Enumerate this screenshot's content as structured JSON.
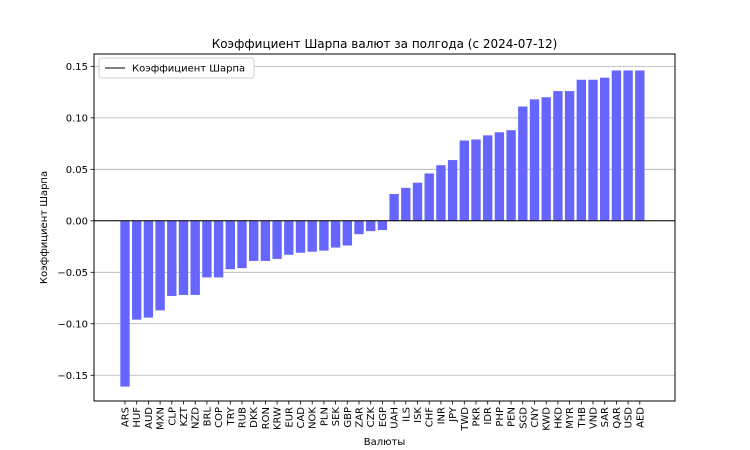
{
  "chart_data": {
    "type": "bar",
    "title": "Коэффициент Шарпа валют за полгода (с 2024-07-12)",
    "xlabel": "Валюты",
    "ylabel": "Коэффициент Шарпа",
    "ylim": [
      -0.175,
      0.162
    ],
    "yticks": [
      -0.15,
      -0.1,
      -0.05,
      0.0,
      0.05,
      0.1,
      0.15
    ],
    "ytick_labels": [
      "−0.15",
      "−0.10",
      "−0.05",
      "0.00",
      "0.05",
      "0.10",
      "0.15"
    ],
    "grid": "horizontal",
    "legend": {
      "placement": "top-left",
      "label": "Коэффициент Шарпа"
    },
    "bar_color": "#6666ff",
    "zero_line_color": "#000000",
    "categories": [
      "ARS",
      "HUF",
      "AUD",
      "MXN",
      "CLP",
      "KZT",
      "NZD",
      "BRL",
      "COP",
      "TRY",
      "RUB",
      "DKK",
      "RON",
      "KRW",
      "EUR",
      "CAD",
      "NOK",
      "PLN",
      "SEK",
      "GBP",
      "ZAR",
      "CZK",
      "EGP",
      "UAH",
      "ILS",
      "ISK",
      "CHF",
      "INR",
      "JPY",
      "TWD",
      "PKR",
      "IDR",
      "PHP",
      "PEN",
      "SGD",
      "CNY",
      "KWD",
      "HKD",
      "MYR",
      "THB",
      "VND",
      "SAR",
      "QAR",
      "USD",
      "AED"
    ],
    "values": [
      -0.161,
      -0.096,
      -0.094,
      -0.087,
      -0.073,
      -0.072,
      -0.072,
      -0.055,
      -0.055,
      -0.047,
      -0.046,
      -0.039,
      -0.039,
      -0.037,
      -0.033,
      -0.031,
      -0.03,
      -0.029,
      -0.026,
      -0.024,
      -0.013,
      -0.01,
      -0.009,
      0.026,
      0.032,
      0.037,
      0.046,
      0.054,
      0.059,
      0.078,
      0.079,
      0.083,
      0.086,
      0.088,
      0.111,
      0.118,
      0.12,
      0.126,
      0.126,
      0.137,
      0.137,
      0.139,
      0.146,
      0.146,
      0.146
    ]
  }
}
